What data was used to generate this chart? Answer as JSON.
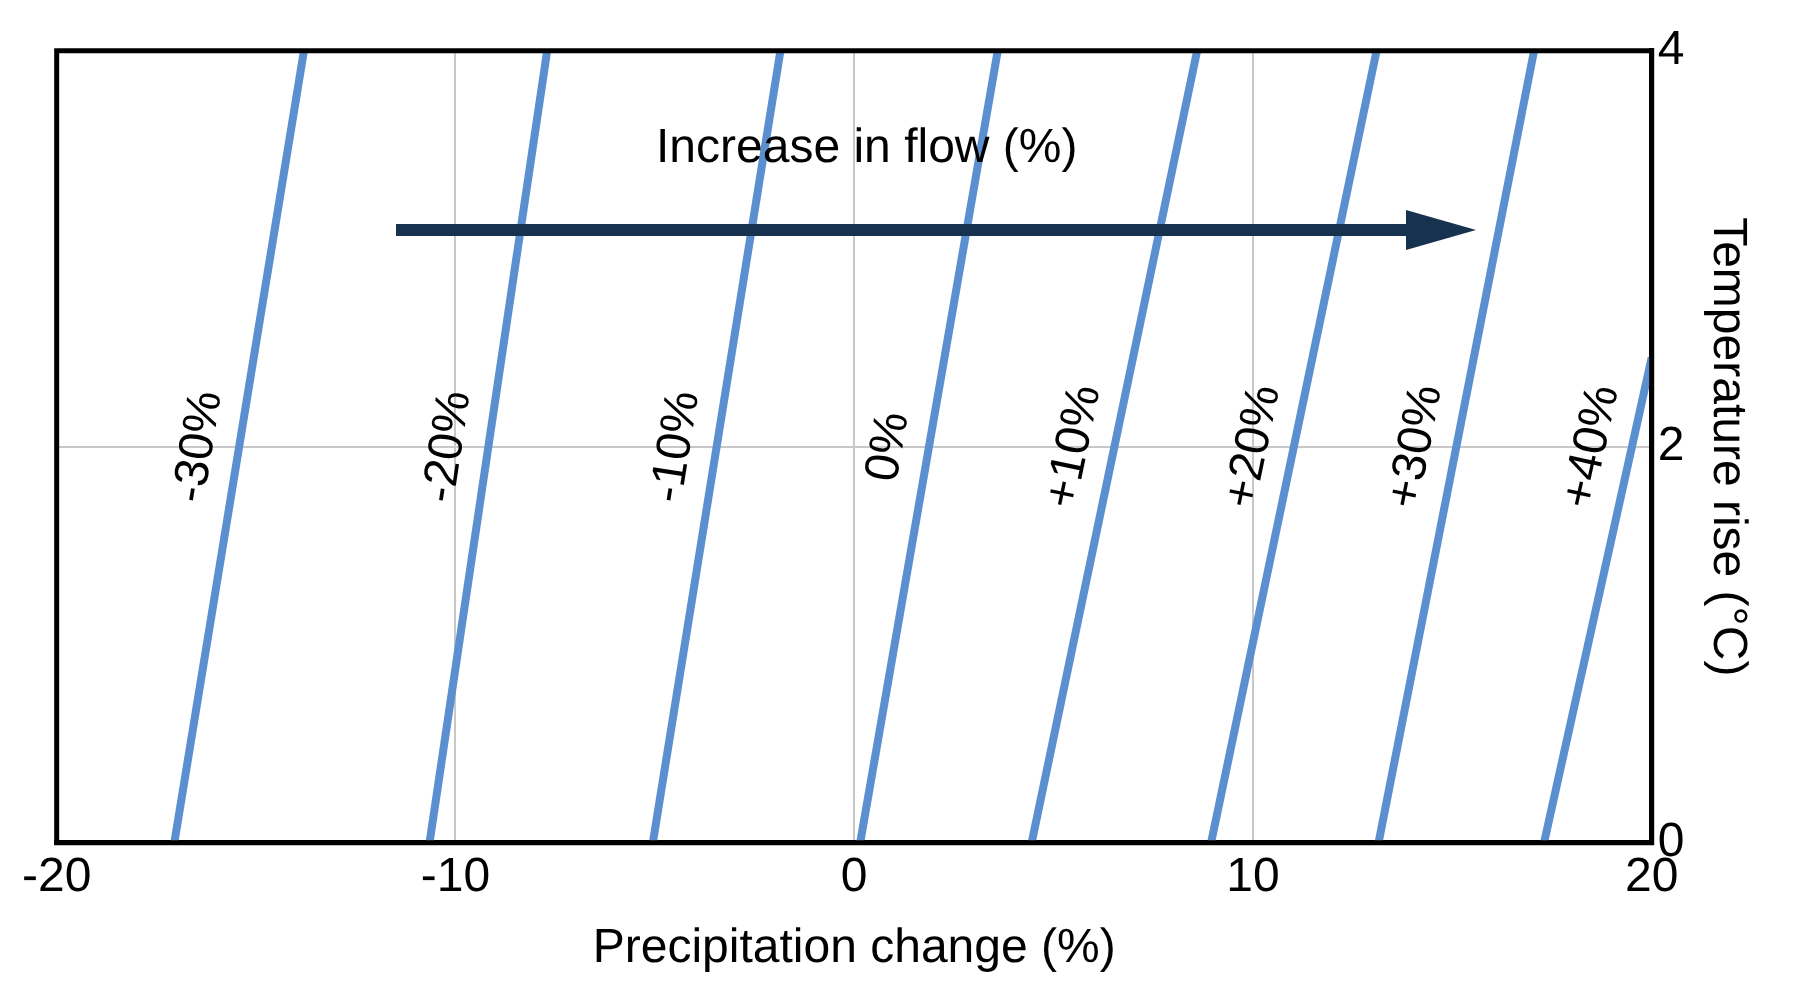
{
  "chart_data": {
    "type": "line",
    "xlabel": "Precipitation change (%)",
    "ylabel": "Temperature rise (°C)",
    "xlim": [
      -20,
      20
    ],
    "xticks": [
      -20,
      -10,
      0,
      10,
      20
    ],
    "ylim": [
      0,
      4
    ],
    "yticks": [
      0,
      2,
      4
    ],
    "grid": true,
    "legend": false,
    "marker": "none",
    "line_style": "solid",
    "annotations": [
      "Increase in flow (%)"
    ],
    "series": [
      {
        "name": "-30%",
        "color": "#5b8fd0",
        "x": [
          -17.05,
          -13.8
        ],
        "values": [
          0,
          4
        ]
      },
      {
        "name": "-20%",
        "color": "#5b8fd0",
        "x": [
          -10.65,
          -7.7
        ],
        "values": [
          0,
          4
        ]
      },
      {
        "name": "-10%",
        "color": "#5b8fd0",
        "x": [
          -5.05,
          -1.85
        ],
        "values": [
          0,
          4
        ]
      },
      {
        "name": "0%",
        "color": "#5b8fd0",
        "x": [
          0.15,
          3.6
        ],
        "values": [
          0,
          4
        ]
      },
      {
        "name": "+10%",
        "color": "#5b8fd0",
        "x": [
          4.45,
          8.6
        ],
        "values": [
          0,
          4
        ]
      },
      {
        "name": "+20%",
        "color": "#5b8fd0",
        "x": [
          8.95,
          13.1
        ],
        "values": [
          0,
          4
        ]
      },
      {
        "name": "+30%",
        "color": "#5b8fd0",
        "x": [
          13.15,
          17.05
        ],
        "values": [
          0,
          4
        ]
      },
      {
        "name": "+40%",
        "color": "#5b8fd0",
        "x": [
          17.3,
          20
        ],
        "values": [
          0,
          2.45
        ]
      }
    ]
  }
}
